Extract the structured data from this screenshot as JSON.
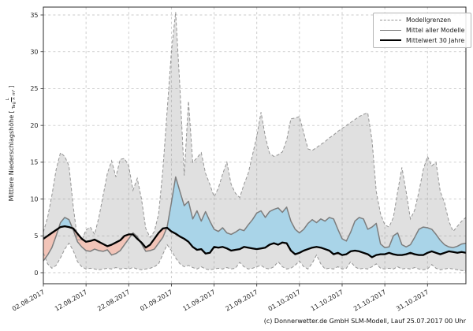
{
  "footer": "(c) Donnerwetter.de GmbH SLM-Modell, Lauf 25.07.2017 00 Uhr",
  "legend": {
    "items": [
      {
        "label": "Modellgrenzen"
      },
      {
        "label": "Mittel aller Modelle"
      },
      {
        "label": "Mittelwert 30 Jahre"
      }
    ]
  },
  "axes": {
    "ylabel": {
      "prefix": "Mittlere Niederschlagshöhe [",
      "fraction_numerator": "L",
      "fraction_denominator": "Tag × m²",
      "suffix": "]"
    }
  },
  "colors": {
    "model_range_fill": "#8c8c8c",
    "model_range_fill_opacity": 0.27,
    "bounds_line": "#949494",
    "mean_line": "#7d7d7d",
    "climatology_line": "#000000",
    "above_normal_fill": "#a9d4e8",
    "below_normal_fill": "#f2c4b8",
    "grid": "#c9c9c9",
    "spine": "#2b2b2b",
    "tick_text": "#262626"
  },
  "chart_data": {
    "type": "line",
    "title": "",
    "ylabel": "Mittlere Niederschlagshöhe [L / (Tag × m²)]",
    "grid": true,
    "legend_position": "upper right",
    "x_axis": {
      "start_date": "02.08.2017",
      "step_days": 1,
      "tick_labels": [
        "02.08.2017",
        "12.08.2017",
        "22.08.2017",
        "01.09.2017",
        "11.09.2017",
        "21.09.2017",
        "01.10.2017",
        "11.10.2017",
        "21.10.2017",
        "31.10.2017"
      ],
      "tick_day_indices": [
        0,
        10,
        20,
        30,
        40,
        50,
        60,
        70,
        80,
        90
      ]
    },
    "y_axis": {
      "ticks": [
        0,
        5,
        10,
        15,
        20,
        25,
        30,
        35
      ],
      "ylim": [
        -1.5,
        36.1
      ],
      "data_range": [
        0,
        35.4
      ]
    },
    "series": [
      {
        "name": "Modellgrenzen (obere Grenze)",
        "style": "dashed",
        "values": [
          5.5,
          7.5,
          10.5,
          14.0,
          16.3,
          15.8,
          14.5,
          9.0,
          4.5,
          4.4,
          5.8,
          6.2,
          5.2,
          7.5,
          10.5,
          13.5,
          15.2,
          13.0,
          15.4,
          15.5,
          14.5,
          11.2,
          12.8,
          10.0,
          6.0,
          4.8,
          5.6,
          8.0,
          14.0,
          22.0,
          30.0,
          35.4,
          25.0,
          13.2,
          23.3,
          15.0,
          15.6,
          16.3,
          13.5,
          12.0,
          10.3,
          11.5,
          13.4,
          15.0,
          12.0,
          10.8,
          10.2,
          12.0,
          13.5,
          16.0,
          18.5,
          21.8,
          18.5,
          16.2,
          15.8,
          16.0,
          16.4,
          18.0,
          20.9,
          21.0,
          21.2,
          19.0,
          16.8,
          16.6,
          17.0,
          17.4,
          17.8,
          18.3,
          18.7,
          19.2,
          19.6,
          20.0,
          20.4,
          20.8,
          21.2,
          21.5,
          21.7,
          18.0,
          11.0,
          8.0,
          6.5,
          6.2,
          7.5,
          11.0,
          14.3,
          11.0,
          7.3,
          8.5,
          11.0,
          14.0,
          15.8,
          14.5,
          15.0,
          11.0,
          9.5,
          7.0,
          5.6,
          6.3,
          7.0,
          7.5
        ]
      },
      {
        "name": "Modellgrenzen (untere Grenze)",
        "style": "dashed",
        "values": [
          2.7,
          1.2,
          0.6,
          1.0,
          2.0,
          3.2,
          4.0,
          3.0,
          1.5,
          0.8,
          0.5,
          0.6,
          0.5,
          0.4,
          0.5,
          0.6,
          0.5,
          0.7,
          0.5,
          0.6,
          0.5,
          0.7,
          0.5,
          0.4,
          0.5,
          0.6,
          0.8,
          1.2,
          2.5,
          3.8,
          3.0,
          2.0,
          1.2,
          0.8,
          1.0,
          0.7,
          0.5,
          0.8,
          0.5,
          0.4,
          0.5,
          0.6,
          0.5,
          0.7,
          0.5,
          0.6,
          1.4,
          0.8,
          0.5,
          0.6,
          0.8,
          1.0,
          0.6,
          0.5,
          0.8,
          1.5,
          0.8,
          0.5,
          0.6,
          1.0,
          1.6,
          0.8,
          0.5,
          1.3,
          2.4,
          1.2,
          0.5,
          0.6,
          0.5,
          0.8,
          0.5,
          0.6,
          1.5,
          0.8,
          0.5,
          0.6,
          0.5,
          0.8,
          1.2,
          0.6,
          0.5,
          0.6,
          0.5,
          0.8,
          0.5,
          0.6,
          0.5,
          0.7,
          0.5,
          0.4,
          0.5,
          1.1,
          0.6,
          0.4,
          0.5,
          0.6,
          0.5,
          0.4,
          0.3,
          0.2
        ]
      },
      {
        "name": "Mittel aller Modelle",
        "style": "solid",
        "values": [
          1.6,
          2.4,
          3.4,
          5.0,
          6.8,
          7.5,
          7.2,
          5.8,
          4.2,
          3.5,
          3.0,
          2.9,
          3.2,
          3.0,
          2.9,
          3.1,
          2.4,
          2.6,
          3.0,
          3.8,
          4.6,
          5.4,
          4.9,
          3.9,
          2.9,
          3.0,
          3.2,
          4.0,
          4.8,
          6.2,
          9.5,
          13.0,
          11.0,
          9.1,
          9.7,
          7.3,
          8.4,
          7.0,
          8.3,
          7.0,
          5.9,
          5.6,
          6.1,
          5.4,
          5.2,
          5.5,
          5.9,
          5.7,
          6.5,
          7.2,
          8.1,
          8.4,
          7.5,
          8.3,
          8.6,
          8.8,
          8.2,
          8.9,
          7.0,
          5.9,
          5.4,
          5.9,
          6.7,
          7.2,
          6.8,
          7.3,
          7.0,
          7.5,
          7.3,
          5.9,
          4.6,
          4.3,
          5.5,
          7.0,
          7.5,
          7.3,
          5.9,
          6.2,
          6.7,
          3.9,
          3.4,
          3.5,
          5.0,
          5.4,
          3.8,
          3.5,
          3.8,
          4.8,
          5.9,
          6.2,
          6.1,
          5.9,
          5.2,
          4.4,
          3.8,
          3.5,
          3.4,
          3.6,
          3.9,
          4.0
        ]
      },
      {
        "name": "Mittelwert 30 Jahre",
        "style": "solid-thick",
        "values": [
          4.6,
          5.0,
          5.4,
          5.8,
          6.2,
          6.3,
          6.2,
          6.0,
          5.3,
          4.6,
          4.2,
          4.3,
          4.5,
          4.2,
          3.9,
          3.6,
          3.8,
          4.1,
          4.4,
          5.0,
          5.2,
          5.2,
          4.6,
          4.1,
          3.4,
          3.8,
          4.6,
          5.4,
          6.0,
          6.1,
          5.6,
          5.3,
          4.9,
          4.6,
          4.2,
          3.5,
          3.1,
          3.2,
          2.6,
          2.7,
          3.5,
          3.4,
          3.5,
          3.3,
          3.0,
          3.1,
          3.2,
          3.5,
          3.4,
          3.3,
          3.2,
          3.3,
          3.4,
          3.8,
          4.0,
          3.8,
          4.1,
          4.0,
          3.0,
          2.5,
          2.7,
          3.0,
          3.2,
          3.4,
          3.5,
          3.4,
          3.2,
          3.0,
          2.5,
          2.7,
          2.4,
          2.5,
          2.9,
          3.0,
          2.9,
          2.7,
          2.5,
          2.1,
          2.4,
          2.5,
          2.5,
          2.7,
          2.5,
          2.4,
          2.4,
          2.5,
          2.7,
          2.5,
          2.4,
          2.4,
          2.7,
          2.9,
          2.7,
          2.5,
          2.7,
          2.9,
          2.8,
          2.7,
          2.8,
          2.7
        ]
      }
    ],
    "fills": [
      {
        "name": "model-range",
        "between": [
          "upper",
          "lower"
        ],
        "color": "#8c8c8c"
      },
      {
        "name": "above-normal",
        "between": [
          "mean",
          "climatology"
        ],
        "when": "mean > climatology",
        "color": "#a9d4e8"
      },
      {
        "name": "below-normal",
        "between": [
          "mean",
          "climatology"
        ],
        "when": "mean < climatology",
        "color": "#f2c4b8"
      }
    ]
  }
}
